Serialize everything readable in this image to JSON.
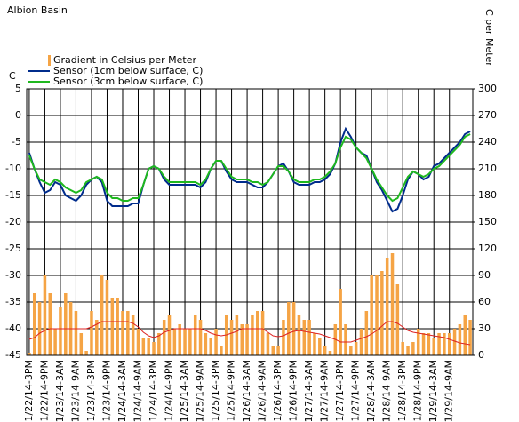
{
  "chart_data": {
    "type": "combo",
    "title": "Albion Basin",
    "y_label": "C",
    "y2_label": "C  per Meter",
    "categories": [
      "1/22/14-3PM",
      null,
      null,
      "1/22/14-9PM",
      null,
      null,
      "1/23/14-3AM",
      null,
      null,
      "1/23/14-9AM",
      null,
      null,
      "1/23/14-3PM",
      null,
      null,
      "1/23/14-9PM",
      null,
      null,
      "1/24/14-3AM",
      null,
      null,
      "1/24/14-9AM",
      null,
      null,
      "1/24/14-3PM",
      null,
      null,
      "1/24/14-9PM",
      null,
      null,
      "1/25/14-3AM",
      null,
      null,
      "1/25/14-9AM",
      null,
      null,
      "1/25/14-3PM",
      null,
      null,
      "1/25/14-9PM",
      null,
      null,
      "1/26/14-3AM",
      null,
      null,
      "1/26/14-9AM",
      null,
      null,
      "1/26/14-3PM",
      null,
      null,
      "1/26/14-9PM",
      null,
      null,
      "1/27/14-3AM",
      null,
      null,
      "1/27/14-9AM",
      null,
      null,
      "1/27/14-3PM",
      null,
      null,
      "1/27/14-9PM",
      null,
      null,
      "1/28/14-3AM",
      null,
      null,
      "1/28/14-9AM",
      null,
      null,
      "1/28/14-3PM",
      null,
      null,
      "1/28/14-9PM",
      null,
      null,
      "1/29/14-3AM",
      null,
      null,
      "1/29/14-9AM",
      null,
      null,
      null,
      null
    ],
    "ylim": [
      -45,
      5
    ],
    "yticks": [
      -45,
      -40,
      -35,
      -30,
      -25,
      -20,
      -15,
      -10,
      -5,
      0,
      5
    ],
    "y2lim": [
      0,
      300
    ],
    "y2ticks": [
      0,
      30,
      60,
      90,
      120,
      150,
      180,
      210,
      240,
      270,
      300
    ],
    "grid": true,
    "series": [
      {
        "name": "Gradient in Celsius per Meter",
        "type": "bar",
        "axis": "y2",
        "color": "#f5a445",
        "values": [
          3,
          70,
          60,
          90,
          70,
          30,
          55,
          70,
          60,
          50,
          25,
          5,
          50,
          40,
          90,
          85,
          65,
          65,
          50,
          50,
          45,
          30,
          20,
          20,
          15,
          25,
          40,
          45,
          30,
          35,
          30,
          30,
          45,
          40,
          25,
          20,
          30,
          10,
          45,
          40,
          45,
          35,
          35,
          45,
          50,
          50,
          25,
          10,
          10,
          40,
          60,
          60,
          45,
          40,
          40,
          25,
          20,
          10,
          5,
          35,
          75,
          35,
          10,
          15,
          30,
          50,
          90,
          90,
          95,
          110,
          115,
          80,
          15,
          10,
          15,
          30,
          25,
          25,
          20,
          25,
          25,
          25,
          30,
          35,
          45,
          40
        ]
      },
      {
        "name": "Sensor (1cm below surface, C)",
        "type": "line",
        "color": "#002c8c",
        "values": [
          -7,
          -10,
          -12.5,
          -14.5,
          -14,
          -12.5,
          -13,
          -15,
          -15.5,
          -16,
          -15,
          -13,
          -12,
          -11.5,
          -12.5,
          -16,
          -17,
          -17,
          -17,
          -17,
          -16.5,
          -16.5,
          -13,
          -10,
          -9.5,
          -10,
          -12,
          -13,
          -13,
          -13,
          -13,
          -13,
          -13,
          -13.5,
          -12.5,
          -10,
          -8.5,
          -8.5,
          -10.5,
          -12,
          -12.5,
          -12.5,
          -12.5,
          -13,
          -13.5,
          -13.5,
          -12.5,
          -11,
          -9.5,
          -9,
          -10.5,
          -12.5,
          -13,
          -13,
          -13,
          -12.5,
          -12.5,
          -12,
          -11,
          -9,
          -5,
          -2.5,
          -4,
          -6,
          -7,
          -7.5,
          -10,
          -12.5,
          -14,
          -16,
          -18,
          -17.5,
          -15,
          -12,
          -10.5,
          -11,
          -12,
          -11.5,
          -9.5,
          -9,
          -8,
          -7,
          -6,
          -5,
          -3.5,
          -3
        ]
      },
      {
        "name": "Sensor (3cm below surface, C)",
        "type": "line",
        "color": "#1fb81f",
        "values": [
          -7.5,
          -10,
          -12,
          -12.5,
          -13,
          -12,
          -12.5,
          -13.5,
          -14,
          -14.5,
          -14,
          -12.5,
          -12,
          -11.5,
          -12,
          -14.5,
          -15.5,
          -15.5,
          -16,
          -16,
          -15.5,
          -15.5,
          -13,
          -10,
          -9.5,
          -10,
          -11.5,
          -12.5,
          -12.5,
          -12.5,
          -12.5,
          -12.5,
          -12.5,
          -13,
          -12,
          -10,
          -8.5,
          -8.5,
          -10,
          -11.5,
          -12,
          -12,
          -12,
          -12.5,
          -12.5,
          -13,
          -12.5,
          -11,
          -9.5,
          -9.5,
          -10.5,
          -12,
          -12.5,
          -12.5,
          -12.5,
          -12,
          -12,
          -11.5,
          -10.5,
          -9,
          -6,
          -4,
          -4.5,
          -6,
          -7,
          -8,
          -10,
          -12,
          -13.5,
          -15,
          -16,
          -15.5,
          -13.5,
          -11.5,
          -10.5,
          -11,
          -11.5,
          -11,
          -10,
          -9.5,
          -8.5,
          -7.5,
          -6.5,
          -5.5,
          -4,
          -3.5
        ]
      },
      {
        "type": "line",
        "axis": "y2",
        "color": "#dd2222",
        "values": [
          18,
          20,
          25,
          28,
          30,
          30,
          30,
          30,
          30,
          30,
          30,
          30,
          32,
          35,
          38,
          38,
          38,
          38,
          38,
          38,
          36,
          32,
          26,
          22,
          20,
          22,
          26,
          28,
          30,
          30,
          30,
          30,
          30,
          30,
          28,
          25,
          23,
          22,
          23,
          25,
          27,
          30,
          30,
          30,
          30,
          30,
          26,
          22,
          21,
          22,
          25,
          27,
          28,
          27,
          26,
          25,
          24,
          22,
          20,
          18,
          15,
          15,
          15,
          17,
          19,
          21,
          24,
          28,
          33,
          38,
          38,
          36,
          32,
          28,
          26,
          25,
          24,
          23,
          22,
          21,
          20,
          18,
          16,
          14,
          13,
          12
        ]
      }
    ]
  }
}
